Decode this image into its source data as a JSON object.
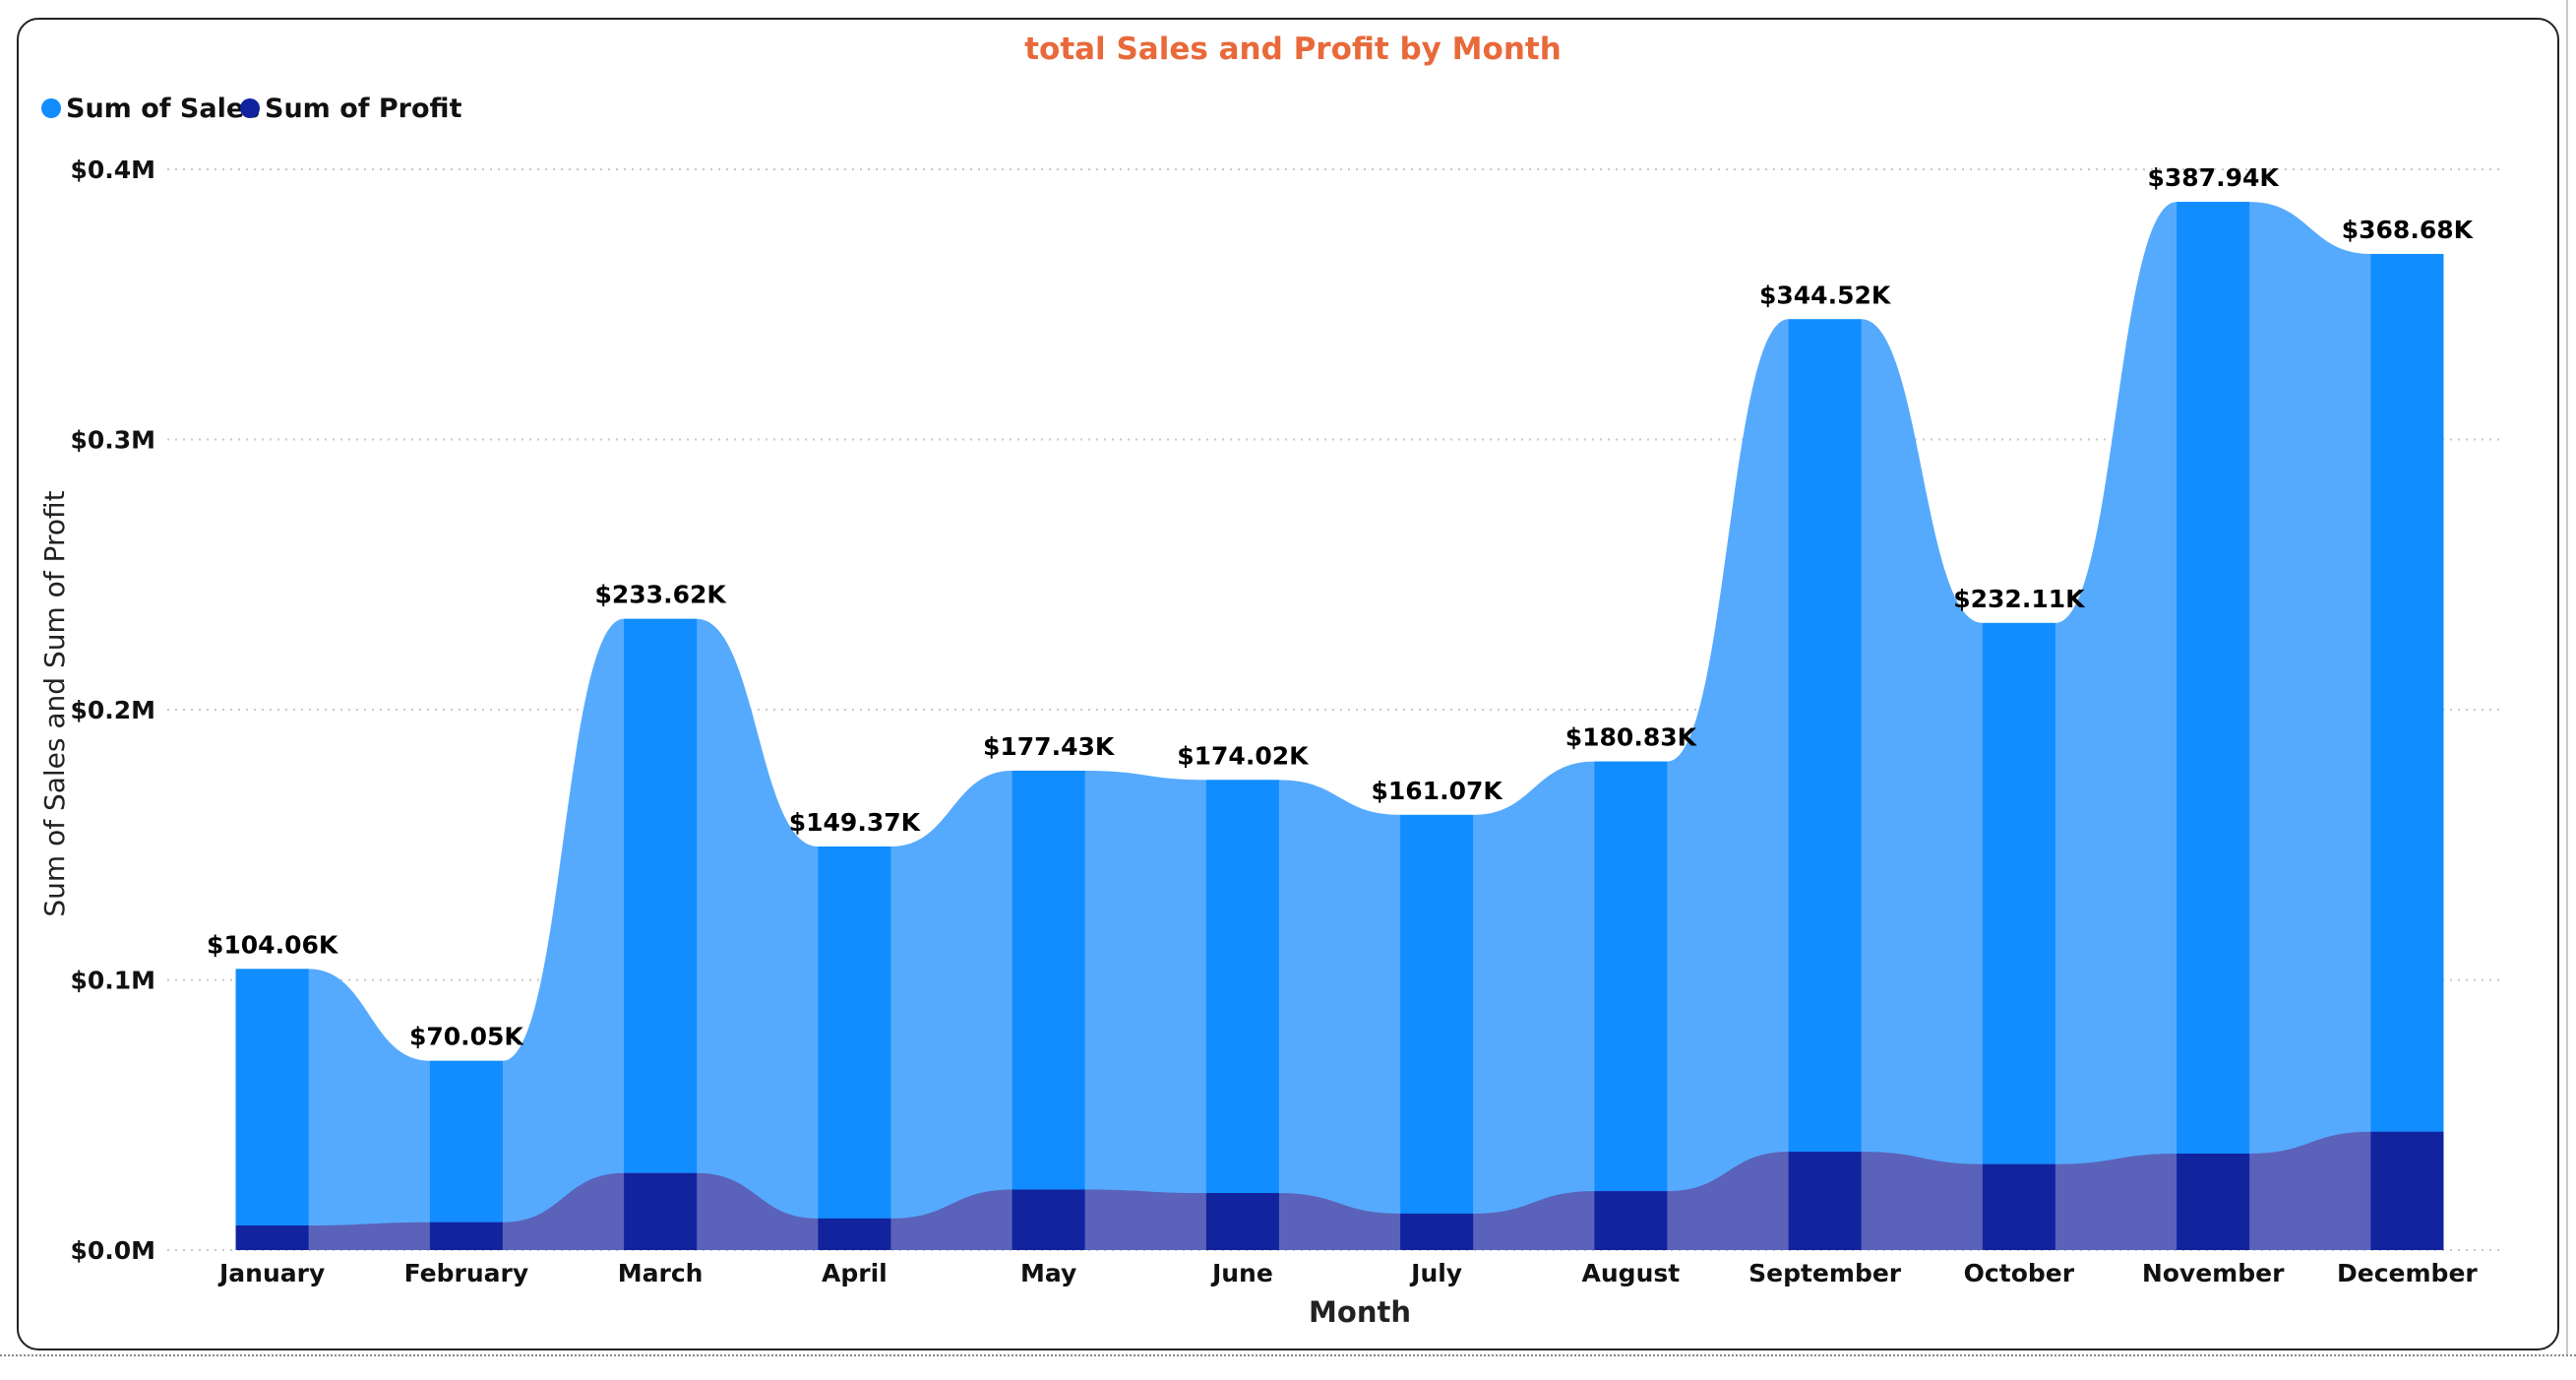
{
  "chart_data": {
    "type": "area",
    "title": "total Sales and Profit by Month",
    "xlabel": "Month",
    "ylabel": "Sum of Sales and Sum of Profit",
    "categories": [
      "January",
      "February",
      "March",
      "April",
      "May",
      "June",
      "July",
      "August",
      "September",
      "October",
      "November",
      "December"
    ],
    "series": [
      {
        "name": "Sum of Sales",
        "values": [
          104060,
          70050,
          233620,
          149370,
          177430,
          174020,
          161070,
          180830,
          344520,
          232110,
          387940,
          368680
        ]
      },
      {
        "name": "Sum of Profit",
        "values": [
          9100,
          10300,
          28500,
          11700,
          22400,
          21100,
          13500,
          21800,
          36400,
          31800,
          35700,
          43800
        ]
      }
    ],
    "data_labels": [
      "$104.06K",
      "$70.05K",
      "$233.62K",
      "$149.37K",
      "$177.43K",
      "$174.02K",
      "$161.07K",
      "$180.83K",
      "$344.52K",
      "$232.11K",
      "$387.94K",
      "$368.68K"
    ],
    "ylim": [
      0,
      400000
    ],
    "yticks": [
      0,
      100000,
      200000,
      300000,
      400000
    ],
    "ytick_labels": [
      "$0.0M",
      "$0.1M",
      "$0.2M",
      "$0.3M",
      "$0.4M"
    ],
    "grid": true,
    "legend_position": "top-left",
    "colors": {
      "title": "#E8693A",
      "sales_bar": "#118DFF",
      "sales_area": "#56AAFD",
      "profit_bar": "#12239E",
      "profit_area": "#5A63B9",
      "legend_sales": "#118DFF",
      "legend_profit": "#12239E",
      "grid": "#c8c8c8"
    }
  }
}
